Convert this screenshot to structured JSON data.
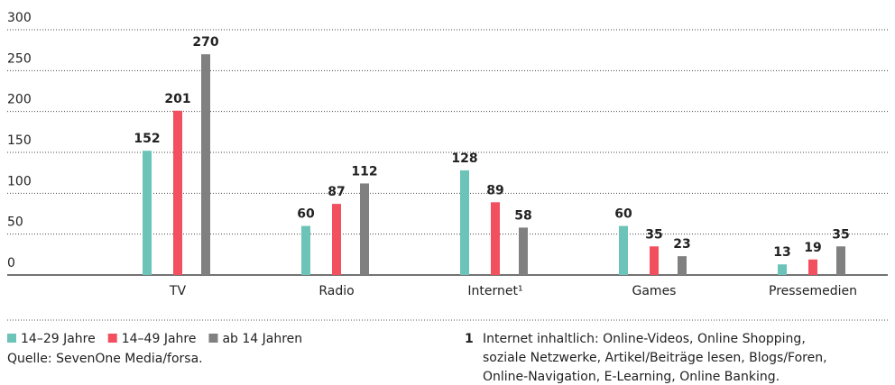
{
  "chart_data": {
    "type": "bar",
    "categories": [
      "TV",
      "Radio",
      "Internet¹",
      "Games",
      "Pressemedien"
    ],
    "series": [
      {
        "name": "14–29 Jahre",
        "color": "#6cc3b8",
        "values": [
          152,
          60,
          128,
          60,
          13
        ]
      },
      {
        "name": "14–49 Jahre",
        "color": "#f2505e",
        "values": [
          201,
          87,
          89,
          35,
          19
        ]
      },
      {
        "name": "ab 14 Jahren",
        "color": "#808080",
        "values": [
          270,
          112,
          58,
          23,
          35
        ]
      }
    ],
    "ylim": [
      0,
      300
    ],
    "yticks": [
      0,
      50,
      100,
      150,
      200,
      250,
      300
    ],
    "grid": true,
    "source": "Quelle: SevenOne Media/forsa.",
    "footnote": {
      "marker": "1",
      "lines": [
        "Internet inhaltlich: Online-Videos, Online Shopping,",
        "soziale Netzwerke, Artikel/Beiträge lesen, Blogs/Foren,",
        "Online-Navigation, E-Learning, Online Banking."
      ]
    }
  }
}
